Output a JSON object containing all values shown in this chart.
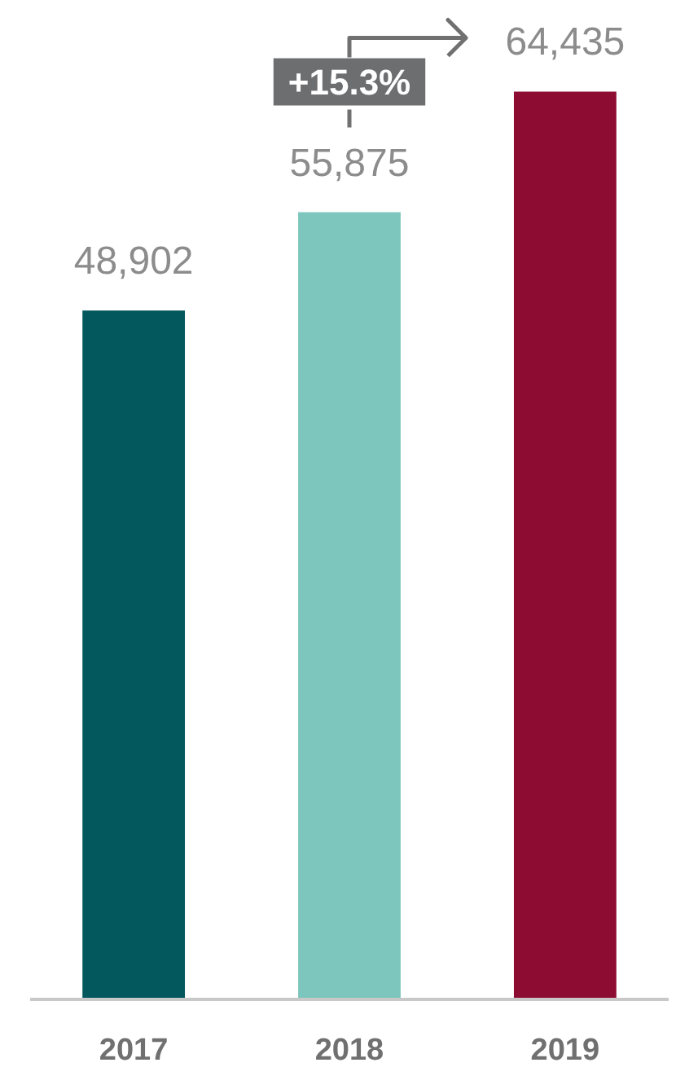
{
  "chart_data": {
    "type": "bar",
    "categories": [
      "2017",
      "2018",
      "2019"
    ],
    "values": [
      48902,
      55875,
      64435
    ],
    "colors": [
      "#02585c",
      "#7dc6bd",
      "#8d0c32"
    ],
    "value_labels": [
      "48,902",
      "55,875",
      "64,435"
    ],
    "annotations": [
      "+15.3%"
    ]
  }
}
